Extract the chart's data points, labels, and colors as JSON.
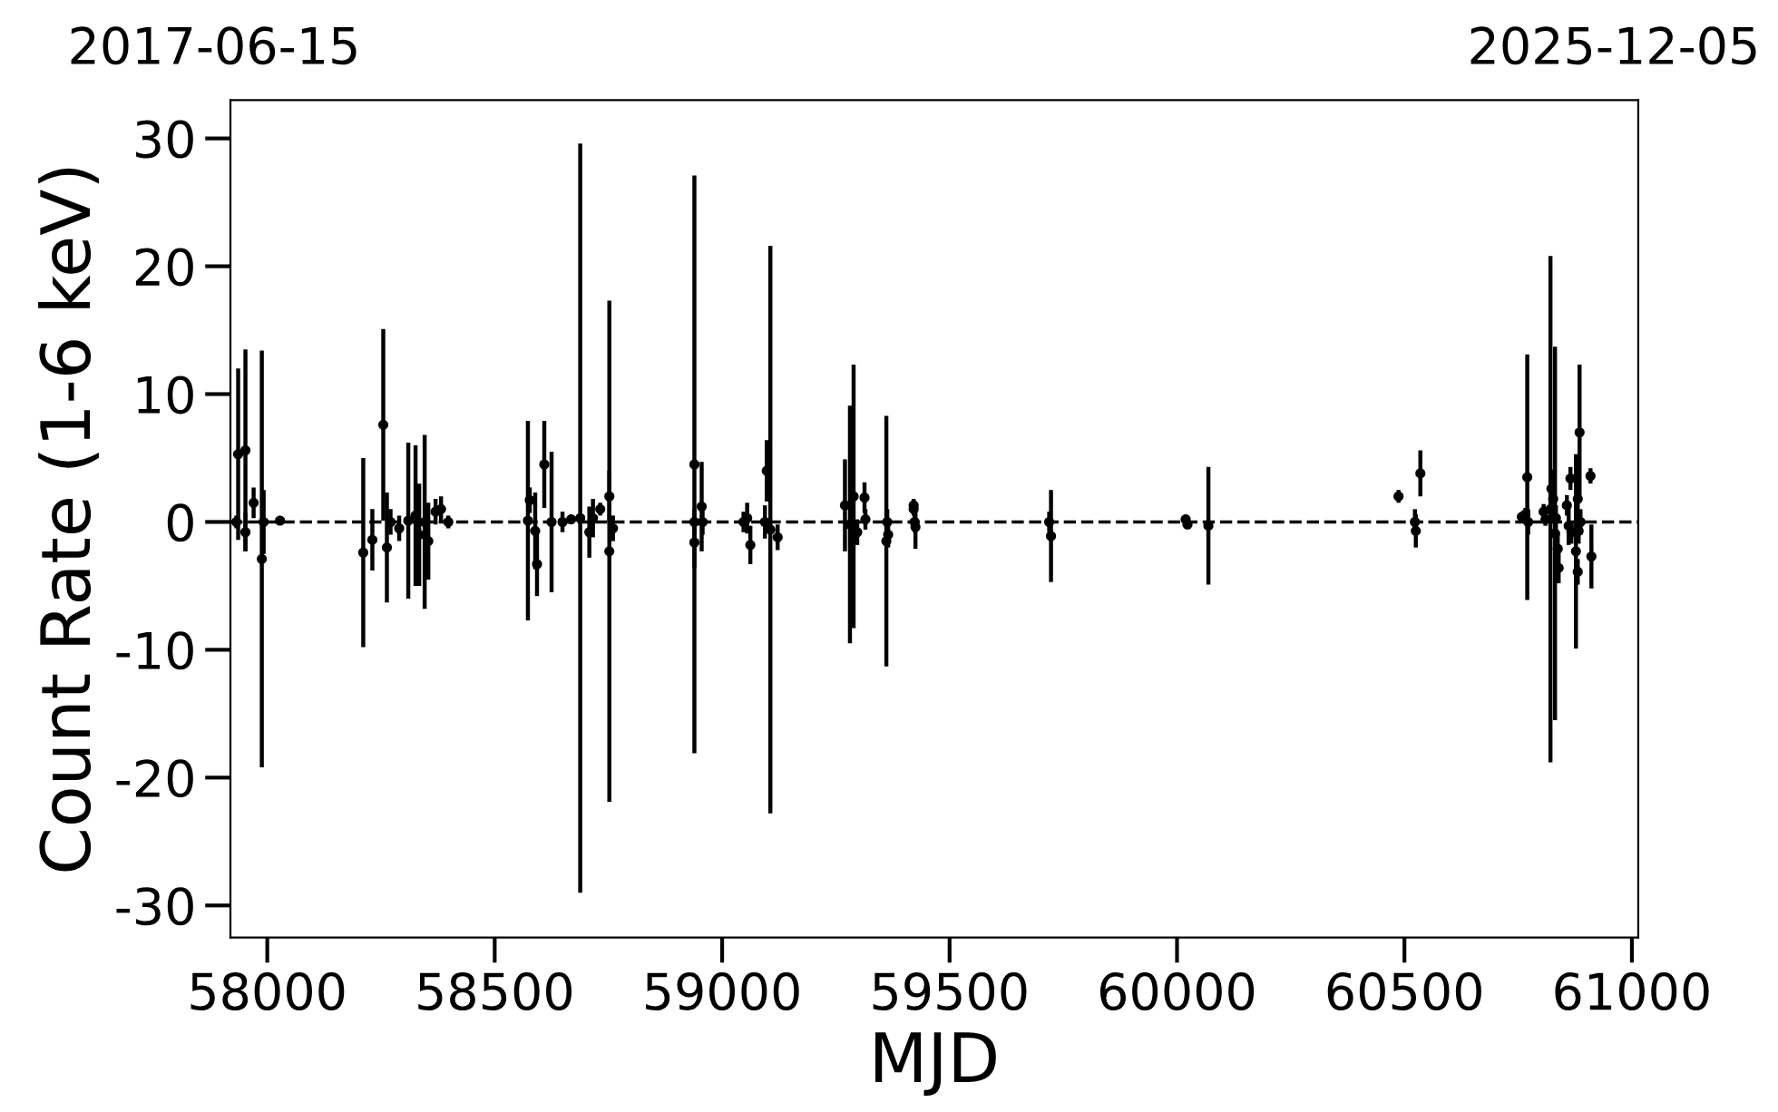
{
  "chart_data": {
    "type": "scatter",
    "xlabel": "MJD",
    "ylabel": "Count Rate (1-6 keV)",
    "xlim": [
      57919,
      61014
    ],
    "xticks": [
      58000,
      58500,
      59000,
      59500,
      60000,
      60500,
      61000
    ],
    "ylim": [
      -32.5,
      33
    ],
    "yticks": [
      -30,
      -20,
      -10,
      0,
      10,
      20,
      30
    ],
    "annotations": [
      "2017-06-15",
      "2025-12-05"
    ],
    "grid": false,
    "marker": "circle",
    "ref_lines": [
      {
        "axis": "y",
        "value": 0,
        "color": "#000000",
        "line_style": "dashed"
      }
    ],
    "series": [
      {
        "color": "#000000",
        "x": [
          57932,
          57936,
          57952,
          57952,
          57970,
          57988,
          57992,
          58028,
          58211,
          58231,
          58255,
          58263,
          58271,
          58290,
          58310,
          58326,
          58334,
          58346,
          58354,
          58370,
          58382,
          58398,
          58573,
          58577,
          58589,
          58593,
          58609,
          58625,
          58649,
          58668,
          58688,
          58708,
          58716,
          58732,
          58752,
          58752,
          58760,
          58939,
          58939,
          58939,
          58955,
          58957,
          59047,
          59055,
          59062,
          59094,
          59098,
          59106,
          59122,
          59270,
          59281,
          59289,
          59297,
          59313,
          59315,
          59361,
          59363,
          59365,
          59421,
          59421,
          59423,
          59425,
          59719,
          59723,
          60019,
          60023,
          60069,
          60487,
          60523,
          60525,
          60535,
          60758,
          60766,
          60770,
          60772,
          60806,
          60810,
          60821,
          60823,
          60827,
          60831,
          60833,
          60837,
          60839,
          60857,
          60861,
          60865,
          60867,
          60877,
          60881,
          60881,
          60883,
          60885,
          60887,
          60909,
          60911
        ],
        "values": [
          0,
          5.3,
          5.6,
          -0.8,
          1.5,
          -2.9,
          0,
          0.1,
          -2.4,
          -1.4,
          7.6,
          -2,
          0,
          -0.5,
          0.1,
          0.5,
          -1,
          0,
          -1.5,
          0.8,
          1,
          0,
          0.1,
          1.7,
          -0.7,
          -3.3,
          4.5,
          0,
          0,
          0.2,
          0.3,
          -0.8,
          0.3,
          1,
          -2.3,
          2,
          -0.5,
          4.5,
          -1.6,
          0,
          1.2,
          0,
          0,
          0.3,
          -1.8,
          0,
          4,
          -0.6,
          -1.2,
          1.3,
          -0.2,
          2,
          -0.8,
          1.9,
          0.2,
          -1.5,
          0,
          -1,
          1.3,
          1,
          0,
          -0.4,
          0,
          -1.1,
          0.2,
          -0.2,
          -0.3,
          2,
          0,
          -0.7,
          3.8,
          0.4,
          0.6,
          3.5,
          0,
          0.8,
          0.2,
          1,
          2.6,
          1.8,
          -0.9,
          0.3,
          -2.1,
          -3.6,
          1.3,
          -0.3,
          3.4,
          -0.8,
          -2.3,
          -3.9,
          1.8,
          -0.7,
          7,
          0,
          3.6,
          -2.7
        ],
        "errors": [
          0.5,
          6.7,
          7.9,
          1.5,
          1.2,
          16.3,
          2.5,
          0.3,
          7.4,
          2.4,
          7.5,
          4.3,
          1,
          1,
          6.1,
          5.5,
          4,
          6.8,
          3,
          1,
          1,
          0.5,
          7.8,
          1,
          3,
          2.5,
          3.4,
          5.5,
          0.8,
          0.3,
          29.3,
          2,
          1.5,
          0.5,
          19.6,
          2,
          1,
          22.6,
          2,
          1,
          3.5,
          1,
          0.8,
          1.2,
          1.5,
          1.3,
          2.4,
          22.2,
          1,
          3.6,
          9.3,
          10.3,
          1,
          1.2,
          0.8,
          9.8,
          1,
          1,
          0.5,
          0.5,
          0.8,
          1.7,
          0.8,
          3.6,
          0.3,
          0.3,
          4.6,
          0.5,
          1,
          1.3,
          1.8,
          0.3,
          0.5,
          9.6,
          1,
          0.6,
          0.5,
          19.8,
          1.5,
          1.5,
          14.6,
          1,
          1.3,
          1.2,
          0.8,
          1.5,
          0.9,
          0.9,
          7.6,
          1,
          2,
          1,
          5.3,
          1,
          0.6,
          2.5
        ]
      }
    ]
  }
}
